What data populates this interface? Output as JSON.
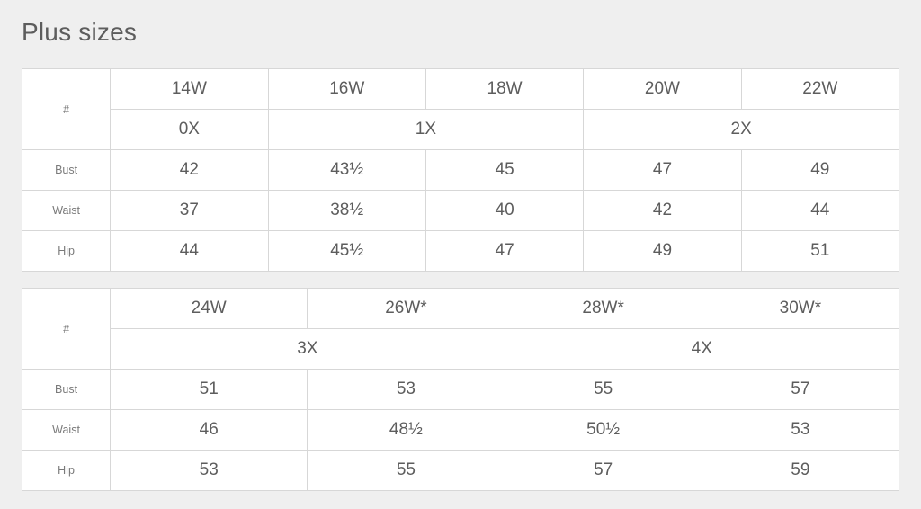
{
  "title": "Plus sizes",
  "table1": {
    "hash": "#",
    "sizes": [
      "14W",
      "16W",
      "18W",
      "20W",
      "22W"
    ],
    "xsizes": [
      "0X",
      "1X",
      "2X"
    ],
    "bustLabel": "Bust",
    "bust": [
      "42",
      "43½",
      "45",
      "47",
      "49"
    ],
    "waistLabel": "Waist",
    "waist": [
      "37",
      "38½",
      "40",
      "42",
      "44"
    ],
    "hipLabel": "Hip",
    "hip": [
      "44",
      "45½",
      "47",
      "49",
      "51"
    ]
  },
  "table2": {
    "hash": "#",
    "sizes": [
      "24W",
      "26W*",
      "28W*",
      "30W*"
    ],
    "xsizes": [
      "3X",
      "4X"
    ],
    "bustLabel": "Bust",
    "bust": [
      "51",
      "53",
      "55",
      "57"
    ],
    "waistLabel": "Waist",
    "waist": [
      "46",
      "48½",
      "50½",
      "53"
    ],
    "hipLabel": "Hip",
    "hip": [
      "53",
      "55",
      "57",
      "59"
    ]
  },
  "colors": {
    "background": "#efefef",
    "tableBg": "#ffffff",
    "border": "#d7d7d7",
    "textPrimary": "#5d5d5d",
    "textSecondary": "#7a7a7a"
  },
  "typography": {
    "titleSize": 28,
    "cellSize": 19,
    "labelSize": 12.5
  }
}
